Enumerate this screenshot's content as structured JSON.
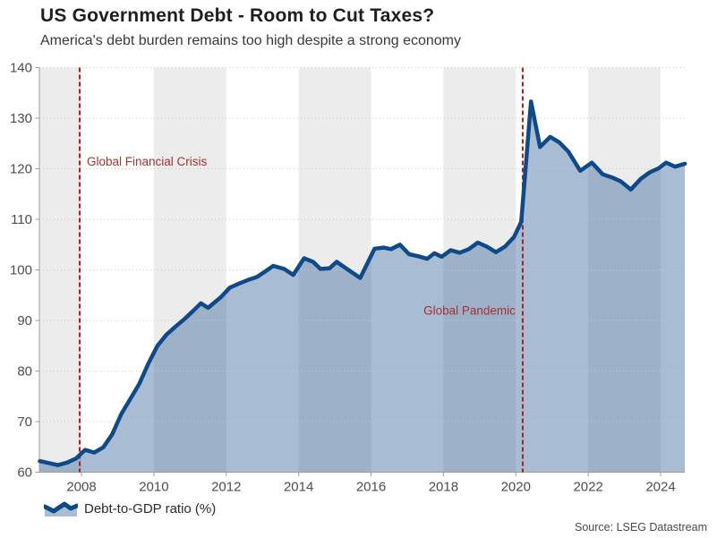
{
  "header": {
    "title": "US Government Debt - Room to Cut Taxes?",
    "subtitle": "America's debt burden remains too high despite a strong economy"
  },
  "source": "Source: LSEG Datastream",
  "colors": {
    "line": "#0e4a8a",
    "fill": "rgba(47,95,152,0.42)",
    "band": "#ececec",
    "event_line": "#a41f1f",
    "event_text": "#a03333",
    "axis": "#9e9e9e",
    "grid": "#c8c8c8",
    "tick_label": "#4d4d4d"
  },
  "chart_data": {
    "type": "area",
    "title": "US Government Debt - Room to Cut Taxes?",
    "subtitle": "America's debt burden remains too high despite a strong economy",
    "xlabel": "",
    "ylabel": "",
    "xlim": [
      2006.84,
      2024.68
    ],
    "ylim": [
      60,
      140
    ],
    "xticks": [
      2008,
      2010,
      2012,
      2014,
      2016,
      2018,
      2020,
      2022,
      2024
    ],
    "yticks": [
      60,
      70,
      80,
      90,
      100,
      110,
      120,
      130,
      140
    ],
    "grid": "horizontal-dotted",
    "legend_position": "bottom-left",
    "background_bands": [
      [
        2006.84,
        2008
      ],
      [
        2010,
        2012
      ],
      [
        2014,
        2016
      ],
      [
        2018,
        2020
      ],
      [
        2022,
        2024
      ]
    ],
    "events": [
      {
        "label": "Global Financial Crisis",
        "year": 2007.95,
        "label_y": 121.5,
        "label_side": "right"
      },
      {
        "label": "Global Pandemic",
        "year": 2020.19,
        "label_y": 92.0,
        "label_side": "left"
      }
    ],
    "series": [
      {
        "name": "Debt-to-GDP ratio (%)",
        "points": [
          [
            2006.85,
            62.2
          ],
          [
            2007.1,
            61.8
          ],
          [
            2007.35,
            61.4
          ],
          [
            2007.6,
            61.9
          ],
          [
            2007.85,
            62.7
          ],
          [
            2008.1,
            64.4
          ],
          [
            2008.35,
            63.9
          ],
          [
            2008.6,
            64.9
          ],
          [
            2008.85,
            67.5
          ],
          [
            2009.1,
            71.5
          ],
          [
            2009.35,
            74.5
          ],
          [
            2009.6,
            77.5
          ],
          [
            2009.85,
            81.5
          ],
          [
            2010.1,
            85.0
          ],
          [
            2010.35,
            87.2
          ],
          [
            2010.6,
            88.8
          ],
          [
            2010.85,
            90.3
          ],
          [
            2011.1,
            92.0
          ],
          [
            2011.3,
            93.4
          ],
          [
            2011.5,
            92.5
          ],
          [
            2011.85,
            94.6
          ],
          [
            2012.1,
            96.5
          ],
          [
            2012.35,
            97.3
          ],
          [
            2012.6,
            98.0
          ],
          [
            2012.85,
            98.6
          ],
          [
            2013.1,
            99.8
          ],
          [
            2013.3,
            100.8
          ],
          [
            2013.6,
            100.2
          ],
          [
            2013.85,
            99.0
          ],
          [
            2014.15,
            102.3
          ],
          [
            2014.4,
            101.6
          ],
          [
            2014.6,
            100.2
          ],
          [
            2014.85,
            100.3
          ],
          [
            2015.05,
            101.6
          ],
          [
            2015.35,
            100.1
          ],
          [
            2015.7,
            98.4
          ],
          [
            2016.1,
            104.2
          ],
          [
            2016.35,
            104.4
          ],
          [
            2016.55,
            104.1
          ],
          [
            2016.8,
            105.0
          ],
          [
            2017.05,
            103.1
          ],
          [
            2017.3,
            102.7
          ],
          [
            2017.55,
            102.2
          ],
          [
            2017.75,
            103.3
          ],
          [
            2017.95,
            102.6
          ],
          [
            2018.2,
            103.9
          ],
          [
            2018.45,
            103.4
          ],
          [
            2018.7,
            104.1
          ],
          [
            2018.95,
            105.4
          ],
          [
            2019.2,
            104.6
          ],
          [
            2019.45,
            103.5
          ],
          [
            2019.7,
            104.6
          ],
          [
            2019.95,
            106.5
          ],
          [
            2020.15,
            109.5
          ],
          [
            2020.42,
            133.3
          ],
          [
            2020.67,
            124.3
          ],
          [
            2020.95,
            126.3
          ],
          [
            2021.2,
            125.2
          ],
          [
            2021.45,
            123.4
          ],
          [
            2021.78,
            119.6
          ],
          [
            2022.1,
            121.2
          ],
          [
            2022.4,
            118.9
          ],
          [
            2022.65,
            118.3
          ],
          [
            2022.9,
            117.5
          ],
          [
            2023.18,
            115.9
          ],
          [
            2023.45,
            118.0
          ],
          [
            2023.7,
            119.3
          ],
          [
            2023.95,
            120.1
          ],
          [
            2024.15,
            121.2
          ],
          [
            2024.4,
            120.4
          ],
          [
            2024.67,
            121.0
          ]
        ]
      }
    ]
  },
  "legend": {
    "label": "Debt-to-GDP ratio (%)"
  }
}
